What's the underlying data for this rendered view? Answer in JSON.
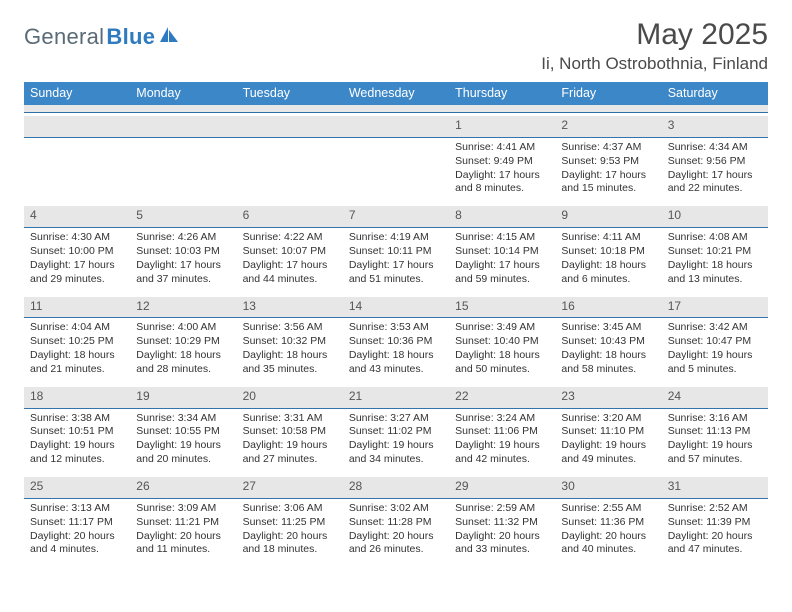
{
  "brand": {
    "part1": "General",
    "part2": "Blue"
  },
  "title": "May 2025",
  "location": "Ii, North Ostrobothnia, Finland",
  "colors": {
    "header_bg": "#3c87c7",
    "band_bg": "#e7e7e7",
    "band_border": "#3474ad",
    "text": "#333333",
    "muted": "#555555"
  },
  "weekdays": [
    "Sunday",
    "Monday",
    "Tuesday",
    "Wednesday",
    "Thursday",
    "Friday",
    "Saturday"
  ],
  "weeks": [
    [
      null,
      null,
      null,
      null,
      {
        "n": "1",
        "sr": "Sunrise: 4:41 AM",
        "ss": "Sunset: 9:49 PM",
        "d1": "Daylight: 17 hours",
        "d2": "and 8 minutes."
      },
      {
        "n": "2",
        "sr": "Sunrise: 4:37 AM",
        "ss": "Sunset: 9:53 PM",
        "d1": "Daylight: 17 hours",
        "d2": "and 15 minutes."
      },
      {
        "n": "3",
        "sr": "Sunrise: 4:34 AM",
        "ss": "Sunset: 9:56 PM",
        "d1": "Daylight: 17 hours",
        "d2": "and 22 minutes."
      }
    ],
    [
      {
        "n": "4",
        "sr": "Sunrise: 4:30 AM",
        "ss": "Sunset: 10:00 PM",
        "d1": "Daylight: 17 hours",
        "d2": "and 29 minutes."
      },
      {
        "n": "5",
        "sr": "Sunrise: 4:26 AM",
        "ss": "Sunset: 10:03 PM",
        "d1": "Daylight: 17 hours",
        "d2": "and 37 minutes."
      },
      {
        "n": "6",
        "sr": "Sunrise: 4:22 AM",
        "ss": "Sunset: 10:07 PM",
        "d1": "Daylight: 17 hours",
        "d2": "and 44 minutes."
      },
      {
        "n": "7",
        "sr": "Sunrise: 4:19 AM",
        "ss": "Sunset: 10:11 PM",
        "d1": "Daylight: 17 hours",
        "d2": "and 51 minutes."
      },
      {
        "n": "8",
        "sr": "Sunrise: 4:15 AM",
        "ss": "Sunset: 10:14 PM",
        "d1": "Daylight: 17 hours",
        "d2": "and 59 minutes."
      },
      {
        "n": "9",
        "sr": "Sunrise: 4:11 AM",
        "ss": "Sunset: 10:18 PM",
        "d1": "Daylight: 18 hours",
        "d2": "and 6 minutes."
      },
      {
        "n": "10",
        "sr": "Sunrise: 4:08 AM",
        "ss": "Sunset: 10:21 PM",
        "d1": "Daylight: 18 hours",
        "d2": "and 13 minutes."
      }
    ],
    [
      {
        "n": "11",
        "sr": "Sunrise: 4:04 AM",
        "ss": "Sunset: 10:25 PM",
        "d1": "Daylight: 18 hours",
        "d2": "and 21 minutes."
      },
      {
        "n": "12",
        "sr": "Sunrise: 4:00 AM",
        "ss": "Sunset: 10:29 PM",
        "d1": "Daylight: 18 hours",
        "d2": "and 28 minutes."
      },
      {
        "n": "13",
        "sr": "Sunrise: 3:56 AM",
        "ss": "Sunset: 10:32 PM",
        "d1": "Daylight: 18 hours",
        "d2": "and 35 minutes."
      },
      {
        "n": "14",
        "sr": "Sunrise: 3:53 AM",
        "ss": "Sunset: 10:36 PM",
        "d1": "Daylight: 18 hours",
        "d2": "and 43 minutes."
      },
      {
        "n": "15",
        "sr": "Sunrise: 3:49 AM",
        "ss": "Sunset: 10:40 PM",
        "d1": "Daylight: 18 hours",
        "d2": "and 50 minutes."
      },
      {
        "n": "16",
        "sr": "Sunrise: 3:45 AM",
        "ss": "Sunset: 10:43 PM",
        "d1": "Daylight: 18 hours",
        "d2": "and 58 minutes."
      },
      {
        "n": "17",
        "sr": "Sunrise: 3:42 AM",
        "ss": "Sunset: 10:47 PM",
        "d1": "Daylight: 19 hours",
        "d2": "and 5 minutes."
      }
    ],
    [
      {
        "n": "18",
        "sr": "Sunrise: 3:38 AM",
        "ss": "Sunset: 10:51 PM",
        "d1": "Daylight: 19 hours",
        "d2": "and 12 minutes."
      },
      {
        "n": "19",
        "sr": "Sunrise: 3:34 AM",
        "ss": "Sunset: 10:55 PM",
        "d1": "Daylight: 19 hours",
        "d2": "and 20 minutes."
      },
      {
        "n": "20",
        "sr": "Sunrise: 3:31 AM",
        "ss": "Sunset: 10:58 PM",
        "d1": "Daylight: 19 hours",
        "d2": "and 27 minutes."
      },
      {
        "n": "21",
        "sr": "Sunrise: 3:27 AM",
        "ss": "Sunset: 11:02 PM",
        "d1": "Daylight: 19 hours",
        "d2": "and 34 minutes."
      },
      {
        "n": "22",
        "sr": "Sunrise: 3:24 AM",
        "ss": "Sunset: 11:06 PM",
        "d1": "Daylight: 19 hours",
        "d2": "and 42 minutes."
      },
      {
        "n": "23",
        "sr": "Sunrise: 3:20 AM",
        "ss": "Sunset: 11:10 PM",
        "d1": "Daylight: 19 hours",
        "d2": "and 49 minutes."
      },
      {
        "n": "24",
        "sr": "Sunrise: 3:16 AM",
        "ss": "Sunset: 11:13 PM",
        "d1": "Daylight: 19 hours",
        "d2": "and 57 minutes."
      }
    ],
    [
      {
        "n": "25",
        "sr": "Sunrise: 3:13 AM",
        "ss": "Sunset: 11:17 PM",
        "d1": "Daylight: 20 hours",
        "d2": "and 4 minutes."
      },
      {
        "n": "26",
        "sr": "Sunrise: 3:09 AM",
        "ss": "Sunset: 11:21 PM",
        "d1": "Daylight: 20 hours",
        "d2": "and 11 minutes."
      },
      {
        "n": "27",
        "sr": "Sunrise: 3:06 AM",
        "ss": "Sunset: 11:25 PM",
        "d1": "Daylight: 20 hours",
        "d2": "and 18 minutes."
      },
      {
        "n": "28",
        "sr": "Sunrise: 3:02 AM",
        "ss": "Sunset: 11:28 PM",
        "d1": "Daylight: 20 hours",
        "d2": "and 26 minutes."
      },
      {
        "n": "29",
        "sr": "Sunrise: 2:59 AM",
        "ss": "Sunset: 11:32 PM",
        "d1": "Daylight: 20 hours",
        "d2": "and 33 minutes."
      },
      {
        "n": "30",
        "sr": "Sunrise: 2:55 AM",
        "ss": "Sunset: 11:36 PM",
        "d1": "Daylight: 20 hours",
        "d2": "and 40 minutes."
      },
      {
        "n": "31",
        "sr": "Sunrise: 2:52 AM",
        "ss": "Sunset: 11:39 PM",
        "d1": "Daylight: 20 hours",
        "d2": "and 47 minutes."
      }
    ]
  ]
}
